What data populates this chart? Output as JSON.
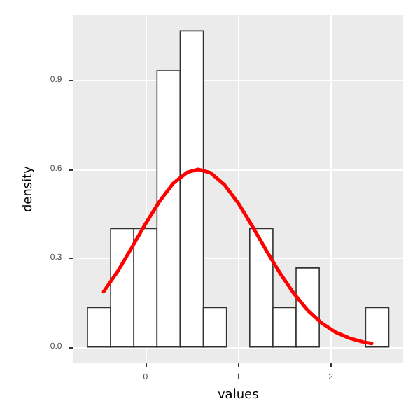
{
  "chart_data": {
    "type": "histogram",
    "xlabel": "values",
    "ylabel": "density",
    "bins": [
      -0.625,
      -0.375,
      -0.125,
      0.125,
      0.375,
      0.625,
      0.875,
      1.125,
      1.375,
      1.625,
      1.875,
      2.125,
      2.375,
      2.625
    ],
    "values": [
      0.133,
      0.4,
      0.4,
      0.933,
      1.067,
      0.133,
      0,
      0.4,
      0.133,
      0.267,
      0,
      0,
      0.133
    ],
    "color": "#ffffff",
    "series": [
      {
        "type": "line",
        "color": "#ff0000",
        "x": [
          -0.45,
          -0.3,
          -0.15,
          0,
          0.15,
          0.3,
          0.45,
          0.57,
          0.7,
          0.85,
          1.0,
          1.15,
          1.3,
          1.45,
          1.6,
          1.75,
          1.9,
          2.05,
          2.2,
          2.35,
          2.44
        ],
        "values": [
          0.187,
          0.255,
          0.334,
          0.416,
          0.491,
          0.553,
          0.59,
          0.6,
          0.589,
          0.549,
          0.487,
          0.41,
          0.328,
          0.25,
          0.181,
          0.124,
          0.081,
          0.05,
          0.03,
          0.017,
          0.012
        ]
      }
    ],
    "xlim": [
      -0.78,
      2.78
    ],
    "ylim": [
      -0.053,
      1.12
    ],
    "xticks": [
      0,
      1,
      2
    ],
    "yticks": [
      {
        "value": 0,
        "label": "0.0"
      },
      {
        "value": 0.3,
        "label": "0.3"
      },
      {
        "value": 0.6,
        "label": "0.6"
      },
      {
        "value": 0.9,
        "label": "0.9"
      }
    ],
    "grid": true,
    "marker": "none"
  }
}
